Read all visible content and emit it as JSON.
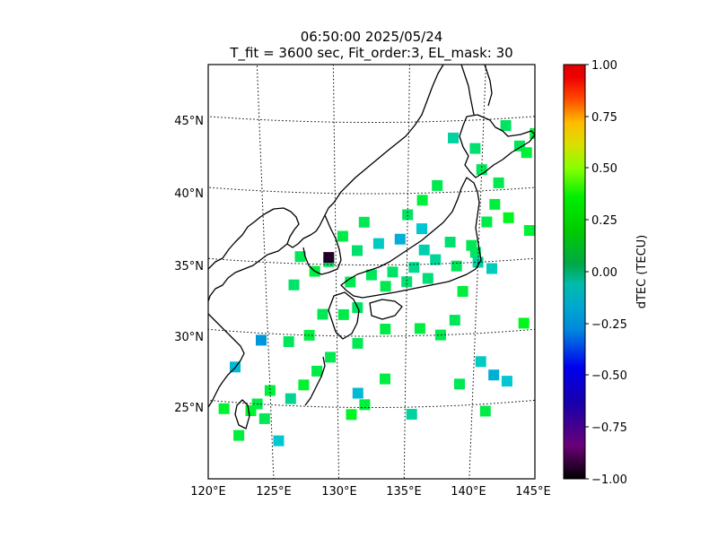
{
  "chart_data": {
    "type": "heatmap",
    "title": "06:50:00 2025/05/24",
    "subtitle": "T_fit = 3600 sec, Fit_order:3, EL_mask: 30",
    "xlabel": "",
    "ylabel": "",
    "projection": "map (lat/lon)",
    "lon_range": [
      120,
      145
    ],
    "lat_range": [
      20,
      49
    ],
    "grid": true,
    "x_ticks": [
      "120°E",
      "125°E",
      "130°E",
      "135°E",
      "140°E",
      "145°E"
    ],
    "y_ticks": [
      "25°N",
      "30°N",
      "35°N",
      "40°N",
      "45°N"
    ],
    "colorbar": {
      "label": "dTEC (TECU)",
      "range": [
        -1.0,
        1.0
      ],
      "ticks": [
        "1.00",
        "0.75",
        "0.50",
        "0.25",
        "0.00",
        "−0.25",
        "−0.50",
        "−0.75",
        "−1.00"
      ],
      "colormap": "nipy_spectral",
      "colors": [
        "#000000",
        "#7d0088",
        "#0000cc",
        "#0096dd",
        "#00aaaa",
        "#00a000",
        "#00cc00",
        "#00ff00",
        "#bbff00",
        "#ffcc00",
        "#ff3300",
        "#ff0000"
      ]
    },
    "points": [
      [
        139.5,
        36.2,
        0.06
      ],
      [
        139.8,
        35.7,
        0.04
      ],
      [
        140.5,
        37.8,
        0.08
      ],
      [
        141.0,
        39.0,
        0.1
      ],
      [
        141.2,
        40.5,
        0.07
      ],
      [
        142.5,
        43.0,
        0.05
      ],
      [
        143.5,
        43.8,
        0.09
      ],
      [
        141.5,
        44.5,
        0.04
      ],
      [
        143.0,
        42.5,
        0.11
      ],
      [
        144.0,
        44.5,
        0.06
      ],
      [
        138.0,
        36.5,
        0.02
      ],
      [
        137.0,
        35.3,
        -0.04
      ],
      [
        136.2,
        36.0,
        -0.08
      ],
      [
        135.5,
        34.8,
        -0.02
      ],
      [
        134.0,
        34.5,
        0.03
      ],
      [
        132.5,
        34.3,
        0.05
      ],
      [
        131.0,
        33.8,
        0.06
      ],
      [
        130.5,
        31.5,
        0.08
      ],
      [
        131.5,
        32.0,
        0.04
      ],
      [
        133.5,
        33.5,
        0.07
      ],
      [
        135.0,
        33.8,
        0.02
      ],
      [
        136.5,
        34.0,
        0.01
      ],
      [
        138.5,
        34.8,
        0.05
      ],
      [
        140.0,
        35.0,
        -0.05
      ],
      [
        141.0,
        34.5,
        -0.1
      ],
      [
        139.0,
        33.0,
        0.1
      ],
      [
        136.0,
        37.5,
        -0.15
      ],
      [
        134.5,
        36.8,
        -0.2
      ],
      [
        133.0,
        36.5,
        -0.12
      ],
      [
        131.5,
        36.0,
        0.02
      ],
      [
        129.5,
        35.2,
        0.04
      ],
      [
        128.5,
        34.5,
        0.09
      ],
      [
        127.5,
        35.5,
        0.06
      ],
      [
        127.0,
        33.5,
        0.03
      ],
      [
        129.0,
        31.5,
        0.06
      ],
      [
        128.0,
        30.0,
        0.09
      ],
      [
        129.5,
        28.5,
        0.07
      ],
      [
        128.5,
        27.5,
        0.08
      ],
      [
        127.5,
        26.5,
        0.12
      ],
      [
        126.5,
        25.5,
        -0.03
      ],
      [
        125.0,
        26.0,
        0.1
      ],
      [
        124.0,
        25.0,
        0.08
      ],
      [
        123.5,
        24.5,
        0.12
      ],
      [
        124.5,
        24.0,
        0.06
      ],
      [
        125.5,
        22.5,
        -0.15
      ],
      [
        122.5,
        22.7,
        0.1
      ],
      [
        121.5,
        24.5,
        0.12
      ],
      [
        122.5,
        27.5,
        -0.18
      ],
      [
        124.5,
        29.5,
        -0.25
      ],
      [
        126.5,
        29.5,
        0.05
      ],
      [
        131.0,
        24.5,
        0.14
      ],
      [
        131.5,
        26.0,
        -0.18
      ],
      [
        132.0,
        25.2,
        0.1
      ],
      [
        133.5,
        27.0,
        0.09
      ],
      [
        135.5,
        24.5,
        -0.05
      ],
      [
        139.0,
        26.5,
        0.06
      ],
      [
        140.5,
        28.0,
        -0.12
      ],
      [
        141.5,
        27.0,
        -0.2
      ],
      [
        142.5,
        26.5,
        -0.15
      ],
      [
        141.0,
        24.5,
        0.08
      ],
      [
        143.5,
        30.5,
        0.15
      ],
      [
        137.5,
        30.0,
        0.07
      ],
      [
        138.5,
        31.0,
        0.05
      ],
      [
        136.0,
        30.5,
        0.09
      ],
      [
        133.5,
        30.5,
        0.08
      ],
      [
        131.5,
        29.5,
        0.06
      ],
      [
        129.5,
        35.5,
        -0.95
      ],
      [
        144.5,
        38.5,
        0.08
      ],
      [
        143.5,
        37.0,
        0.12
      ],
      [
        145.0,
        40.5,
        0.1
      ],
      [
        142.0,
        38.0,
        0.15
      ],
      [
        140.0,
        41.5,
        0.05
      ],
      [
        139.5,
        43.0,
        0.02
      ],
      [
        138.0,
        43.8,
        -0.05
      ],
      [
        137.0,
        40.5,
        0.07
      ],
      [
        136.0,
        39.5,
        0.1
      ],
      [
        135.0,
        38.5,
        0.04
      ],
      [
        132.0,
        38.0,
        0.06
      ],
      [
        130.5,
        37.0,
        0.08
      ]
    ]
  }
}
